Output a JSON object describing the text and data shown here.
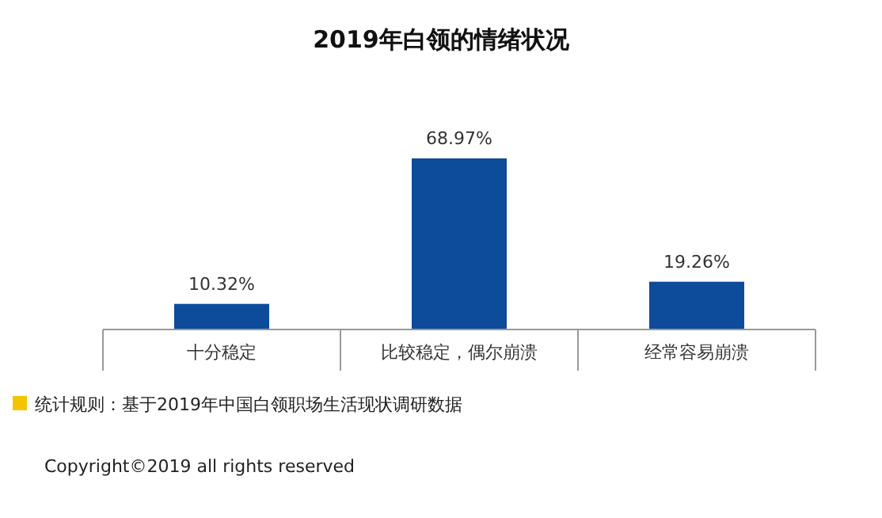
{
  "chart_data": {
    "type": "bar",
    "title": "2019年白领的情绪状况",
    "categories": [
      "十分稳定",
      "比较稳定，偶尔崩溃",
      "经常容易崩溃"
    ],
    "values": [
      10.32,
      68.97,
      19.26
    ],
    "color": "#0d4b9b",
    "value_labels": [
      "10.32%",
      "68.97%",
      "19.26%"
    ],
    "annotations": [
      "统计规则：基于2019年中国白领职场生活现状调研数据",
      "Copyright©2019 all rights reserved"
    ]
  }
}
